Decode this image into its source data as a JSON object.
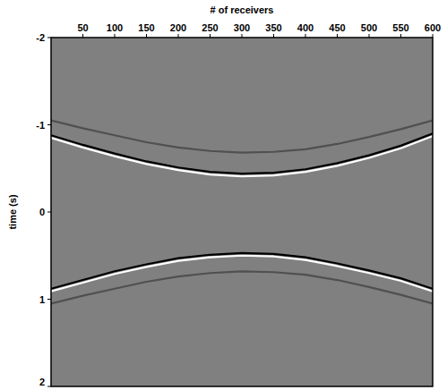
{
  "chart_data": {
    "type": "line",
    "x_label": "# of receivers",
    "y_label": "time (s)",
    "x": [
      0,
      50,
      100,
      150,
      200,
      250,
      300,
      350,
      400,
      450,
      500,
      550,
      600
    ],
    "series": [
      {
        "color": "#000000",
        "values": [
          -0.88,
          -0.77,
          -0.67,
          -0.58,
          -0.51,
          -0.46,
          -0.44,
          -0.45,
          -0.49,
          -0.56,
          -0.65,
          -0.76,
          -0.9
        ]
      },
      {
        "color": "#ffffff",
        "values": [
          -0.85,
          -0.74,
          -0.64,
          -0.55,
          -0.48,
          -0.43,
          -0.41,
          -0.42,
          -0.46,
          -0.53,
          -0.62,
          -0.73,
          -0.87
        ]
      },
      {
        "color": "#505050",
        "values": [
          -1.05,
          -0.96,
          -0.88,
          -0.8,
          -0.74,
          -0.7,
          -0.68,
          -0.69,
          -0.72,
          -0.78,
          -0.86,
          -0.95,
          -1.05
        ]
      },
      {
        "color": "#000000",
        "values": [
          0.88,
          0.78,
          0.68,
          0.6,
          0.53,
          0.49,
          0.47,
          0.48,
          0.52,
          0.59,
          0.67,
          0.76,
          0.88
        ]
      },
      {
        "color": "#ffffff",
        "values": [
          0.91,
          0.81,
          0.71,
          0.63,
          0.56,
          0.52,
          0.5,
          0.51,
          0.55,
          0.62,
          0.7,
          0.79,
          0.91
        ]
      },
      {
        "color": "#505050",
        "values": [
          1.05,
          0.96,
          0.88,
          0.8,
          0.74,
          0.7,
          0.68,
          0.69,
          0.72,
          0.78,
          0.86,
          0.95,
          1.05
        ]
      }
    ],
    "xlim": [
      0,
      600
    ],
    "xticks": [
      50,
      100,
      150,
      200,
      250,
      300,
      350,
      400,
      450,
      500,
      550,
      600
    ],
    "ylim": [
      -2,
      2
    ],
    "yticks": [
      -2,
      -1,
      0,
      1,
      2
    ],
    "grid": false
  }
}
